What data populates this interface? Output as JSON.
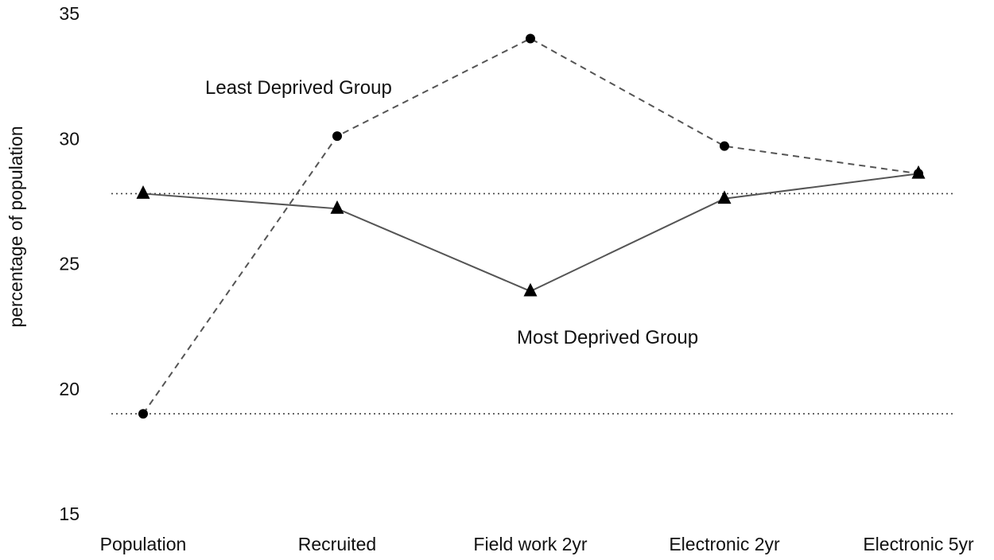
{
  "chart_data": {
    "type": "line",
    "title": "",
    "xlabel": "",
    "ylabel": "percentage of population",
    "ylim": [
      15,
      35
    ],
    "yticks": [
      15,
      20,
      25,
      30,
      35
    ],
    "categories": [
      "Population",
      "Recruited",
      "Field work 2yr",
      "Electronic 2yr",
      "Electronic 5yr"
    ],
    "series": [
      {
        "name": "Least Deprived Group",
        "values": [
          19.0,
          30.1,
          34.0,
          29.7,
          28.6
        ],
        "line_style": "dashed",
        "marker": "circle",
        "color": "#555555"
      },
      {
        "name": "Most Deprived Group",
        "values": [
          27.8,
          27.2,
          23.9,
          27.6,
          28.6
        ],
        "line_style": "solid",
        "marker": "triangle",
        "color": "#555555"
      }
    ],
    "reference_lines": [
      27.8,
      19.0
    ],
    "reference_line_style": "dotted",
    "grid": false,
    "legend": "none"
  }
}
